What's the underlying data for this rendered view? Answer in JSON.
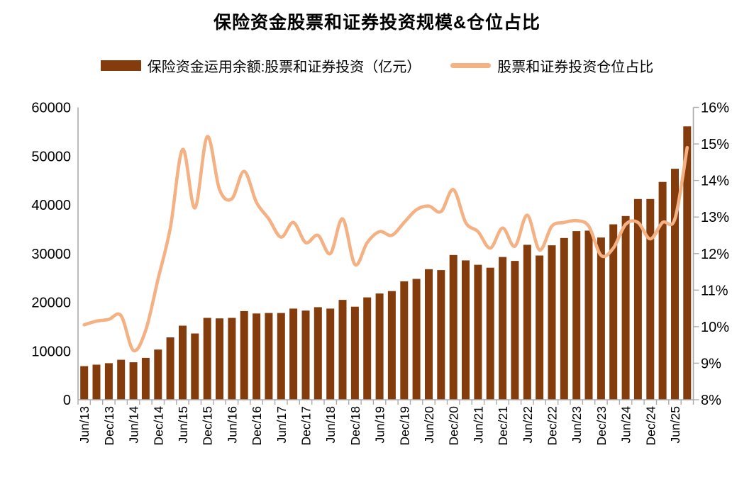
{
  "page": {
    "background": "#FFFFFF",
    "text_color": "#000000",
    "axis_color": "#ACACAC"
  },
  "chart_data": {
    "type": "bar+line",
    "title": "保险资金股票和证券投资规模&仓位占比",
    "legend_position": "top",
    "grid": "none",
    "legend": [
      {
        "label": "保险资金运用余额:股票和证券投资（亿元）",
        "swatch": "bar",
        "color": "#843C0C"
      },
      {
        "label": "股票和证券投资仓位占比",
        "swatch": "line",
        "color": "#F4B183"
      }
    ],
    "categories": [
      "Jun/13",
      "Sep/13",
      "Dec/13",
      "Mar/14",
      "Jun/14",
      "Sep/14",
      "Dec/14",
      "Mar/15",
      "Jun/15",
      "Sep/15",
      "Dec/15",
      "Mar/16",
      "Jun/16",
      "Sep/16",
      "Dec/16",
      "Mar/17",
      "Jun/17",
      "Sep/17",
      "Dec/17",
      "Mar/18",
      "Jun/18",
      "Sep/18",
      "Dec/18",
      "Mar/19",
      "Jun/19",
      "Sep/19",
      "Dec/19",
      "Mar/20",
      "Jun/20",
      "Sep/20",
      "Dec/20",
      "Mar/21",
      "Jun/21",
      "Sep/21",
      "Dec/21",
      "Mar/22",
      "Jun/22",
      "Sep/22",
      "Dec/22",
      "Mar/23",
      "Jun/23",
      "Sep/23",
      "Dec/23",
      "Mar/24",
      "Jun/24",
      "Sep/24",
      "Dec/24",
      "Mar/25",
      "Jun/25",
      "Sep/25"
    ],
    "x_axis": {
      "label_every": 2,
      "tick_labels_visible": [
        "Jun/13",
        "Dec/13",
        "Jun/14",
        "Dec/14",
        "Jun/15",
        "Dec/15",
        "Jun/16",
        "Dec/16",
        "Jun/17",
        "Dec/17",
        "Jun/18",
        "Dec/18",
        "Jun/19",
        "Dec/19",
        "Jun/20",
        "Dec/20",
        "Jun/21",
        "Dec/21",
        "Jun/22",
        "Dec/22",
        "Jun/23",
        "Dec/23",
        "Jun/24",
        "Dec/24",
        "Jun/25"
      ]
    },
    "left_axis": {
      "min": 0,
      "max": 60000,
      "step": 10000,
      "tick_labels": [
        "0",
        "10000",
        "20000",
        "30000",
        "40000",
        "50000",
        "60000"
      ]
    },
    "right_axis": {
      "min": 8,
      "max": 16,
      "step": 1,
      "tick_labels": [
        "8%",
        "9%",
        "10%",
        "11%",
        "12%",
        "13%",
        "14%",
        "15%",
        "16%"
      ]
    },
    "series": [
      {
        "name": "保险资金运用余额:股票和证券投资（亿元）",
        "type": "bar",
        "axis": "left",
        "color": "#843C0C",
        "values": [
          6900,
          7200,
          7500,
          8200,
          7700,
          8600,
          10300,
          12800,
          15200,
          13600,
          16800,
          16700,
          16800,
          18200,
          17700,
          17800,
          17800,
          18700,
          18300,
          19000,
          18700,
          20500,
          19100,
          21000,
          21800,
          22300,
          24300,
          24800,
          26800,
          26600,
          29700,
          28600,
          27700,
          27100,
          29300,
          28500,
          31800,
          29600,
          31700,
          33200,
          34600,
          34700,
          33300,
          36000,
          37700,
          41200,
          41200,
          44700,
          47400,
          56100
        ]
      },
      {
        "name": "股票和证券投资仓位占比",
        "type": "line",
        "axis": "right",
        "color": "#F4B183",
        "values_percent": [
          10.05,
          10.15,
          10.2,
          10.3,
          9.35,
          9.9,
          11.3,
          12.7,
          14.85,
          13.25,
          15.2,
          13.75,
          13.5,
          14.25,
          13.4,
          12.95,
          12.45,
          12.85,
          12.3,
          12.5,
          12.0,
          12.95,
          11.7,
          12.3,
          12.6,
          12.5,
          12.85,
          13.2,
          13.3,
          13.15,
          13.75,
          12.85,
          12.6,
          12.15,
          12.7,
          12.2,
          13.05,
          12.1,
          12.75,
          12.85,
          12.9,
          12.75,
          11.95,
          12.15,
          12.8,
          12.85,
          12.4,
          12.85,
          12.95,
          14.9
        ]
      }
    ]
  }
}
